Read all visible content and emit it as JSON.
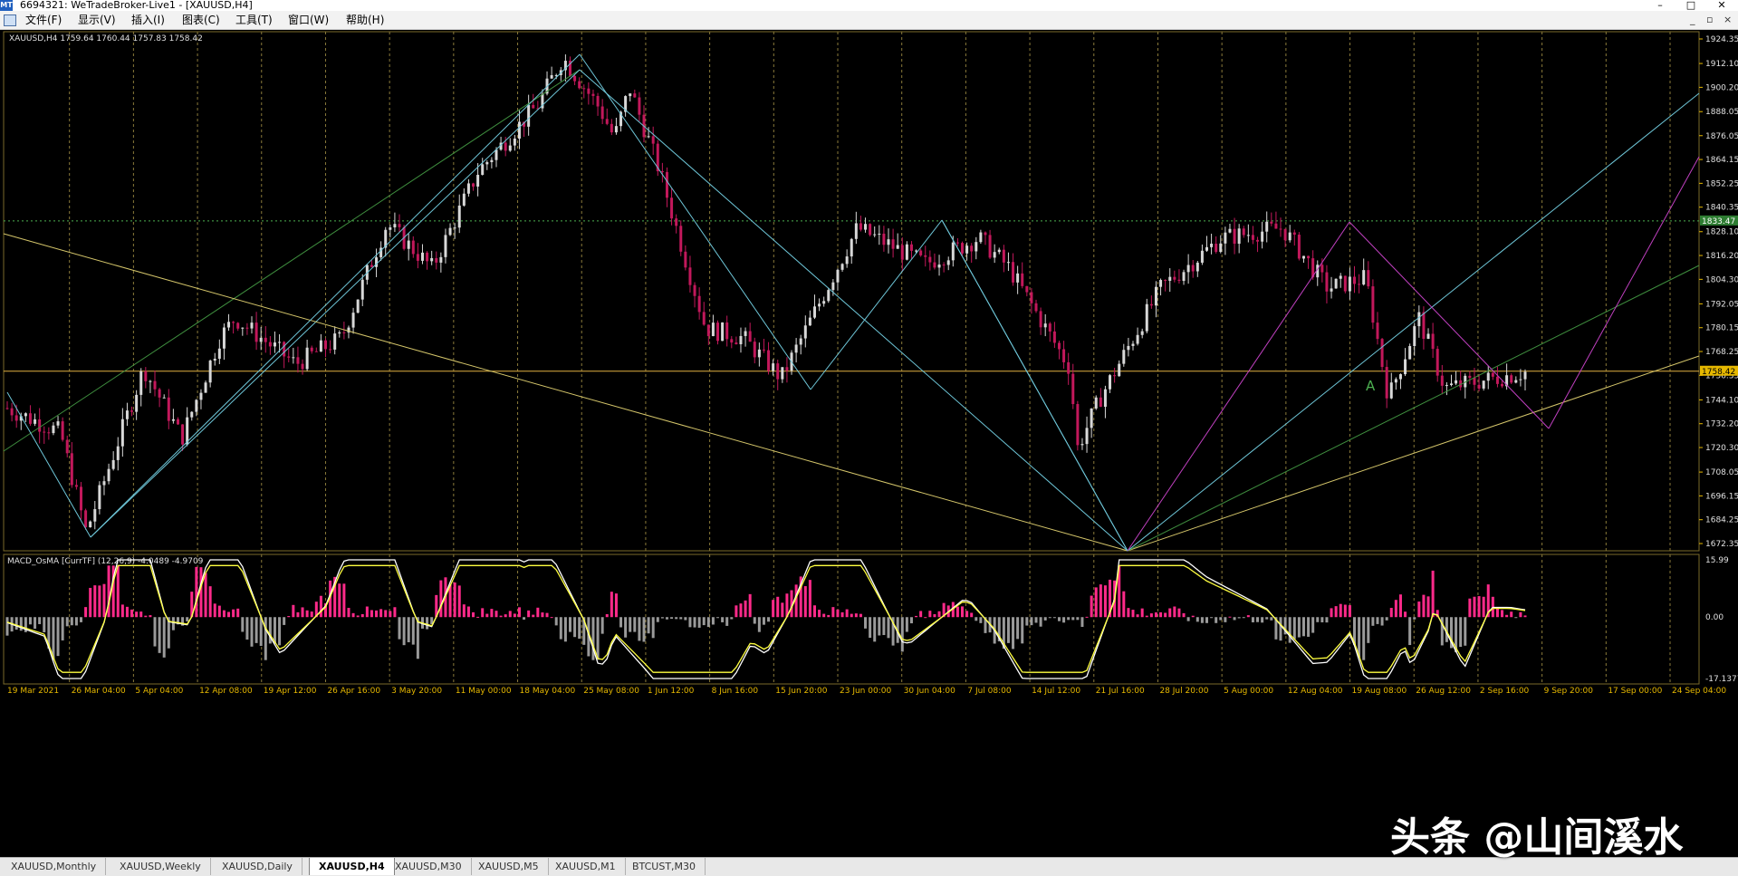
{
  "window": {
    "title": "6694321: WeTradeBroker-Live1 - [XAUUSD,H4]",
    "controls": [
      "–",
      "□",
      "✕"
    ],
    "mdi_controls": [
      "_",
      "▫",
      "×"
    ]
  },
  "menu": {
    "items": [
      "文件(F)",
      "显示(V)",
      "插入(I)",
      "图表(C)",
      "工具(T)",
      "窗口(W)",
      "帮助(H)"
    ]
  },
  "chart": {
    "symbol_info": "XAUUSD,H4  1759.64 1760.44 1757.83 1758.42",
    "indicator_label": "MACD_OsMA [CurrTF] (12,26,9) -4.0489 -4.9709",
    "current_price_label": "1758.42",
    "level_price_label": "1833.47",
    "wave_label": "A",
    "price_ticks": [
      "1924.35",
      "1912.10",
      "1900.20",
      "1888.05",
      "1876.05",
      "1864.15",
      "1852.25",
      "1840.35",
      "1828.10",
      "1816.20",
      "1804.30",
      "1792.05",
      "1780.15",
      "1768.25",
      "1756.35",
      "1744.10",
      "1732.20",
      "1720.30",
      "1708.05",
      "1696.15",
      "1684.25",
      "1672.35"
    ],
    "indicator_ticks": [
      "15.99",
      "0.00",
      "-17.1377"
    ],
    "time_ticks": [
      "19 Mar 2021",
      "26 Mar 04:00",
      "5 Apr 04:00",
      "12 Apr 08:00",
      "19 Apr 12:00",
      "26 Apr 16:00",
      "3 May 20:00",
      "11 May 00:00",
      "18 May 04:00",
      "25 May 08:00",
      "1 Jun 12:00",
      "8 Jun 16:00",
      "15 Jun 20:00",
      "23 Jun 00:00",
      "30 Jun 04:00",
      "7 Jul 08:00",
      "14 Jul 12:00",
      "21 Jul 16:00",
      "28 Jul 20:00",
      "5 Aug 00:00",
      "12 Aug 04:00",
      "19 Aug 08:00",
      "26 Aug 12:00",
      "2 Sep 16:00",
      "9 Sep 20:00",
      "17 Sep 00:00",
      "24 Sep 04:00"
    ],
    "colors": {
      "background": "#000000",
      "bull_candle": "#d8d8d8",
      "bear_candle": "#c2185b",
      "grid": "#8a7a3a",
      "axis_text": "#e6b800",
      "channel": "#3f8f3f",
      "zigzag": "#6ec6d8",
      "trend": "#d4c56a",
      "magenta": "#c040c0",
      "macd_pos": "#ff2a8a",
      "macd_neg": "#9a9a9a",
      "signal_white": "#ffffff",
      "signal_yellow": "#ffff40"
    }
  },
  "tabs": {
    "items": [
      "XAUUSD,Monthly",
      "XAUUSD,Weekly",
      "XAUUSD,Daily",
      "XAUUSD,H4",
      "XAUUSD,M30",
      "XAUUSD,M5",
      "XAUUSD,M1",
      "BTCUST,M30"
    ],
    "active": "XAUUSD,H4"
  },
  "watermark": {
    "text": "头条 @山间溪水"
  }
}
